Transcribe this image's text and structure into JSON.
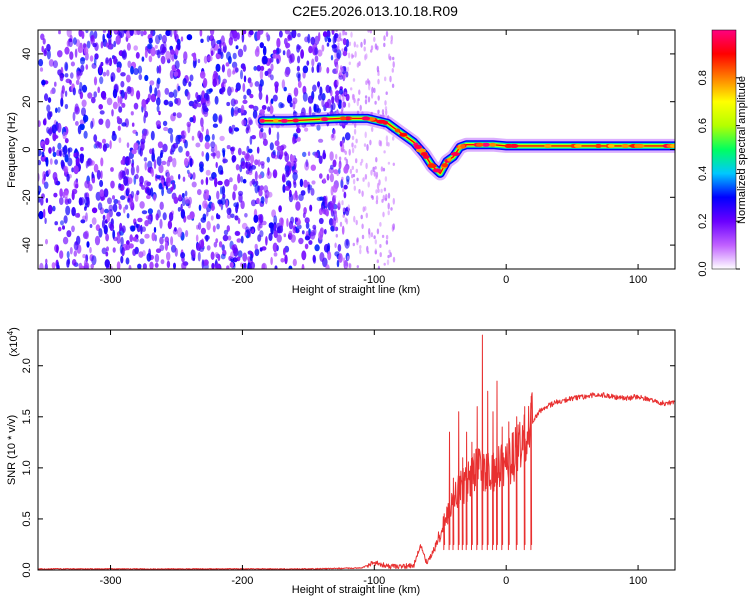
{
  "figure": {
    "title": "C2E5.2026.013.10.18.R09"
  },
  "chart_data": [
    {
      "type": "heatmap",
      "xlabel": "Height of straight line (km)",
      "ylabel": "Frequency (Hz)",
      "xlim": [
        -355,
        128
      ],
      "ylim": [
        -50,
        50
      ],
      "xticks": [
        -300,
        -200,
        -100,
        0,
        100
      ],
      "yticks": [
        -40,
        -20,
        0,
        20,
        40
      ],
      "colorbar": {
        "label": "Normalized spectral amplitude",
        "range": [
          0,
          1
        ],
        "ticks": [
          "0.0",
          "0.2",
          "0.4",
          "0.6",
          "0.8"
        ],
        "colors": [
          "#ffffff",
          "#c060ff",
          "#6a00ff",
          "#0000ff",
          "#00c8ff",
          "#00ff60",
          "#b4ff00",
          "#ffff00",
          "#ff8000",
          "#ff0000",
          "#ff0080"
        ]
      },
      "signal_track": {
        "x": [
          -185,
          -165,
          -145,
          -125,
          -105,
          -90,
          -80,
          -70,
          -62,
          -56,
          -50,
          -45,
          -40,
          -35,
          -30,
          -20,
          -10,
          0,
          20,
          40,
          60,
          80,
          100,
          128
        ],
        "y": [
          12,
          12,
          12.5,
          13,
          13,
          11,
          7,
          3,
          -2,
          -7,
          -10,
          -5,
          -3,
          1,
          2,
          2,
          2,
          1.5,
          1.5,
          1.5,
          1.5,
          1.5,
          1.5,
          1.5
        ]
      }
    },
    {
      "type": "line",
      "xlabel": "Height of straight line (km)",
      "ylabel": "SNR (10 * v/v)",
      "y_multiplier": "(x10",
      "y_multiplier_exp": "4",
      "y_multiplier_close": ")",
      "xlim": [
        -355,
        128
      ],
      "ylim": [
        0,
        2.35
      ],
      "xticks": [
        -300,
        -200,
        -100,
        0,
        100
      ],
      "yticks": [
        "0.0",
        "0.5",
        "1.0",
        "1.5",
        "2.0"
      ],
      "series": [
        {
          "color": "#e83030",
          "x": [
            -355,
            -300,
            -250,
            -200,
            -150,
            -110,
            -100,
            -90,
            -80,
            -70,
            -65,
            -60,
            -55,
            -50,
            -45,
            -40,
            -35,
            -30,
            -25,
            -20,
            -15,
            -10,
            -5,
            0,
            5,
            10,
            15,
            20,
            25,
            30,
            40,
            50,
            60,
            70,
            80,
            90,
            100,
            110,
            120,
            128
          ],
          "y": [
            0.01,
            0.01,
            0.01,
            0.01,
            0.01,
            0.02,
            0.07,
            0.04,
            0.03,
            0.05,
            0.25,
            0.06,
            0.2,
            0.35,
            0.55,
            0.7,
            0.8,
            0.85,
            0.95,
            1.0,
            0.95,
            0.95,
            1.0,
            1.05,
            1.1,
            1.2,
            1.3,
            1.45,
            1.55,
            1.6,
            1.65,
            1.68,
            1.7,
            1.72,
            1.7,
            1.68,
            1.7,
            1.66,
            1.63,
            1.64
          ],
          "spikes": [
            {
              "x": -47,
              "y": 0.55
            },
            {
              "x": -43,
              "y": 1.35
            },
            {
              "x": -40,
              "y": 0.9
            },
            {
              "x": -36,
              "y": 1.55
            },
            {
              "x": -33,
              "y": 1.1
            },
            {
              "x": -30,
              "y": 1.35
            },
            {
              "x": -26,
              "y": 1.25
            },
            {
              "x": -22,
              "y": 1.6
            },
            {
              "x": -18,
              "y": 2.3
            },
            {
              "x": -14,
              "y": 1.75
            },
            {
              "x": -10,
              "y": 1.55
            },
            {
              "x": -7,
              "y": 1.85
            },
            {
              "x": -3,
              "y": 1.4
            },
            {
              "x": 2,
              "y": 1.45
            },
            {
              "x": 8,
              "y": 1.5
            },
            {
              "x": 14,
              "y": 1.6
            },
            {
              "x": 19,
              "y": 1.7
            }
          ]
        }
      ]
    }
  ]
}
